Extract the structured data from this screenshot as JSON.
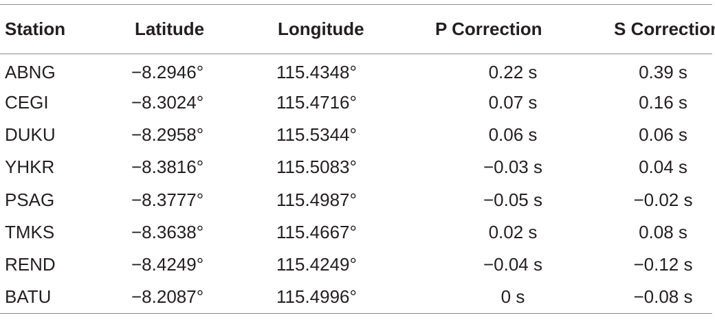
{
  "table": {
    "headers": [
      "Station",
      "Latitude",
      "Longitude",
      "P Correction",
      "S Correction"
    ],
    "rows": [
      [
        "ABNG",
        "−8.2946°",
        "115.4348°",
        "0.22 s",
        "0.39 s"
      ],
      [
        "CEGI",
        "−8.3024°",
        "115.4716°",
        "0.07 s",
        "0.16 s"
      ],
      [
        "DUKU",
        "−8.2958°",
        "115.5344°",
        "0.06 s",
        "0.06 s"
      ],
      [
        "YHKR",
        "−8.3816°",
        "115.5083°",
        "−0.03 s",
        "0.04 s"
      ],
      [
        "PSAG",
        "−8.3777°",
        "115.4987°",
        "−0.05 s",
        "−0.02 s"
      ],
      [
        "TMKS",
        "−8.3638°",
        "115.4667°",
        "0.02 s",
        "0.08 s"
      ],
      [
        "REND",
        "−8.4249°",
        "115.4249°",
        "−0.04 s",
        "−0.12 s"
      ],
      [
        "BATU",
        "−8.2087°",
        "115.4996°",
        "0 s",
        "−0.08 s"
      ]
    ]
  }
}
